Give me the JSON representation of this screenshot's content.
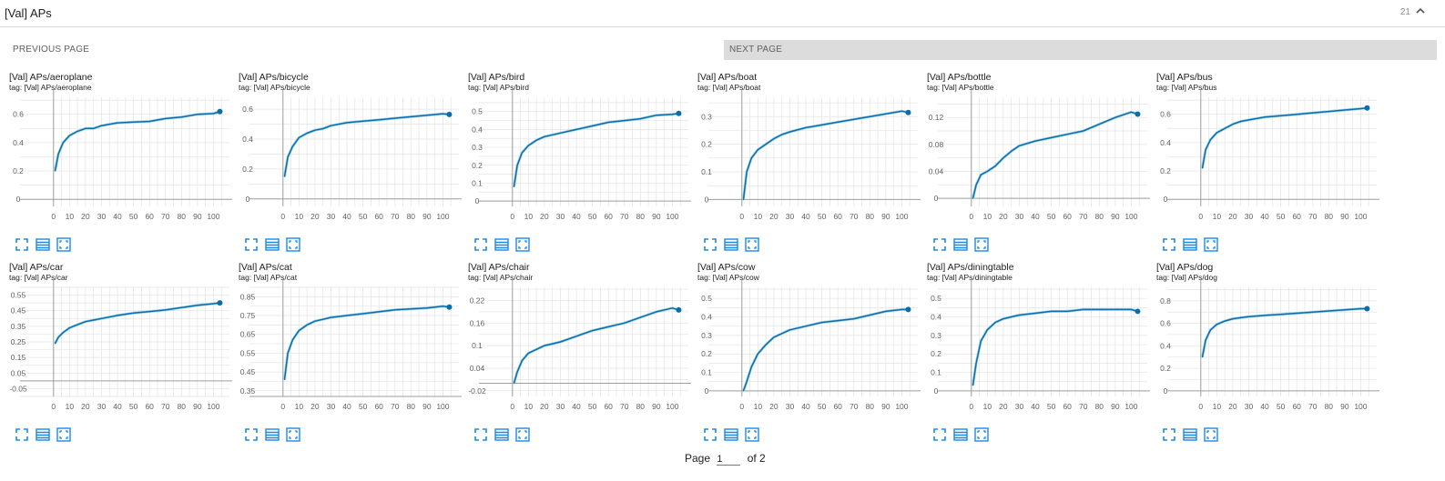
{
  "header": {
    "title": "[Val] APs",
    "count": "21"
  },
  "pager": {
    "prev_label": "PREVIOUS PAGE",
    "next_label": "NEXT PAGE",
    "page_label": "Page",
    "page_value": "1",
    "of_label": "of 2"
  },
  "colors": {
    "line": "#0b6ea8",
    "raw": "#a8d6ec",
    "grid": "#e3e3e3",
    "axis": "#9e9e9e",
    "icon": "#1e88e5"
  },
  "chart_data": [
    {
      "type": "line",
      "title": "[Val] APs/aeroplane",
      "tag": "tag: [Val] APs/aeroplane",
      "yticks": [
        0,
        0.2,
        0.4,
        0.6
      ],
      "ylim": [
        -0.05,
        0.72
      ],
      "xticks": [
        0,
        10,
        20,
        30,
        40,
        50,
        60,
        70,
        80,
        90,
        100
      ],
      "xlim": [
        -5,
        110
      ],
      "series": [
        {
          "x": [
            1,
            3,
            6,
            10,
            15,
            20,
            25,
            30,
            40,
            50,
            60,
            70,
            80,
            90,
            100,
            104
          ],
          "y": [
            0.2,
            0.32,
            0.4,
            0.45,
            0.48,
            0.5,
            0.5,
            0.52,
            0.54,
            0.545,
            0.55,
            0.57,
            0.58,
            0.6,
            0.605,
            0.62
          ]
        }
      ]
    },
    {
      "type": "line",
      "title": "[Val] APs/bicycle",
      "tag": "tag: [Val] APs/bicycle",
      "yticks": [
        0,
        0.2,
        0.4,
        0.6
      ],
      "ylim": [
        -0.05,
        0.68
      ],
      "xticks": [
        0,
        10,
        20,
        30,
        40,
        50,
        60,
        70,
        80,
        90,
        100
      ],
      "xlim": [
        -5,
        110
      ],
      "series": [
        {
          "x": [
            1,
            3,
            6,
            10,
            15,
            20,
            25,
            30,
            40,
            50,
            60,
            70,
            80,
            90,
            100,
            104
          ],
          "y": [
            0.15,
            0.28,
            0.35,
            0.41,
            0.44,
            0.46,
            0.47,
            0.49,
            0.51,
            0.52,
            0.53,
            0.54,
            0.55,
            0.56,
            0.57,
            0.565
          ]
        }
      ]
    },
    {
      "type": "line",
      "title": "[Val] APs/bird",
      "tag": "tag: [Val] APs/bird",
      "yticks": [
        0,
        0.1,
        0.2,
        0.3,
        0.4,
        0.5
      ],
      "ylim": [
        -0.03,
        0.58
      ],
      "xticks": [
        0,
        10,
        20,
        30,
        40,
        50,
        60,
        70,
        80,
        90,
        100
      ],
      "xlim": [
        -5,
        110
      ],
      "series": [
        {
          "x": [
            1,
            3,
            6,
            10,
            15,
            20,
            25,
            30,
            40,
            50,
            60,
            70,
            80,
            90,
            100,
            104
          ],
          "y": [
            0.08,
            0.2,
            0.27,
            0.31,
            0.34,
            0.36,
            0.37,
            0.38,
            0.4,
            0.42,
            0.44,
            0.45,
            0.46,
            0.48,
            0.485,
            0.49
          ]
        }
      ]
    },
    {
      "type": "line",
      "title": "[Val] APs/boat",
      "tag": "tag: [Val] APs/boat",
      "yticks": [
        0,
        0.1,
        0.2,
        0.3
      ],
      "ylim": [
        -0.025,
        0.37
      ],
      "xticks": [
        0,
        10,
        20,
        30,
        40,
        50,
        60,
        70,
        80,
        90,
        100
      ],
      "xlim": [
        -5,
        110
      ],
      "series": [
        {
          "x": [
            1,
            3,
            6,
            10,
            15,
            20,
            25,
            30,
            40,
            50,
            60,
            70,
            80,
            90,
            100,
            104
          ],
          "y": [
            0.0,
            0.1,
            0.15,
            0.18,
            0.2,
            0.22,
            0.235,
            0.245,
            0.26,
            0.27,
            0.28,
            0.29,
            0.3,
            0.31,
            0.32,
            0.315
          ]
        }
      ]
    },
    {
      "type": "line",
      "title": "[Val] APs/bottle",
      "tag": "tag: [Val] APs/bottle",
      "yticks": [
        0,
        0.04,
        0.08,
        0.12
      ],
      "ylim": [
        -0.012,
        0.15
      ],
      "xticks": [
        0,
        10,
        20,
        30,
        40,
        50,
        60,
        70,
        80,
        90,
        100
      ],
      "xlim": [
        -5,
        110
      ],
      "series": [
        {
          "x": [
            1,
            3,
            6,
            10,
            15,
            20,
            25,
            30,
            40,
            50,
            60,
            70,
            80,
            90,
            100,
            104
          ],
          "y": [
            0.0,
            0.02,
            0.035,
            0.04,
            0.048,
            0.06,
            0.07,
            0.078,
            0.085,
            0.09,
            0.095,
            0.1,
            0.11,
            0.12,
            0.128,
            0.125
          ]
        }
      ]
    },
    {
      "type": "line",
      "title": "[Val] APs/bus",
      "tag": "tag: [Val] APs/bus",
      "yticks": [
        0,
        0.2,
        0.4,
        0.6
      ],
      "ylim": [
        -0.05,
        0.72
      ],
      "xticks": [
        0,
        10,
        20,
        30,
        40,
        50,
        60,
        70,
        80,
        90,
        100
      ],
      "xlim": [
        -5,
        110
      ],
      "series": [
        {
          "x": [
            1,
            3,
            6,
            10,
            15,
            20,
            25,
            30,
            40,
            50,
            60,
            70,
            80,
            90,
            100,
            104
          ],
          "y": [
            0.22,
            0.35,
            0.42,
            0.47,
            0.5,
            0.53,
            0.55,
            0.56,
            0.58,
            0.59,
            0.6,
            0.61,
            0.62,
            0.63,
            0.64,
            0.645
          ]
        }
      ]
    },
    {
      "type": "line",
      "title": "[Val] APs/car",
      "tag": "tag: [Val] APs/car",
      "yticks": [
        -0.05,
        0.05,
        0.15,
        0.25,
        0.35,
        0.45,
        0.55
      ],
      "ylim": [
        -0.1,
        0.6
      ],
      "xticks": [
        0,
        10,
        20,
        30,
        40,
        50,
        60,
        70,
        80,
        90,
        100
      ],
      "xlim": [
        -5,
        110
      ],
      "series": [
        {
          "x": [
            1,
            3,
            6,
            10,
            15,
            20,
            25,
            30,
            40,
            50,
            60,
            70,
            80,
            90,
            100,
            104
          ],
          "y": [
            0.24,
            0.28,
            0.31,
            0.34,
            0.36,
            0.38,
            0.39,
            0.4,
            0.42,
            0.435,
            0.445,
            0.455,
            0.47,
            0.485,
            0.495,
            0.5
          ]
        }
      ]
    },
    {
      "type": "line",
      "title": "[Val] APs/cat",
      "tag": "tag: [Val] APs/cat",
      "yticks": [
        0.35,
        0.45,
        0.55,
        0.65,
        0.75,
        0.85
      ],
      "ylim": [
        0.32,
        0.9
      ],
      "xticks": [
        0,
        10,
        20,
        30,
        40,
        50,
        60,
        70,
        80,
        90,
        100
      ],
      "xlim": [
        -5,
        110
      ],
      "series": [
        {
          "x": [
            1,
            3,
            6,
            10,
            15,
            20,
            25,
            30,
            40,
            50,
            60,
            70,
            80,
            90,
            100,
            104
          ],
          "y": [
            0.41,
            0.55,
            0.62,
            0.67,
            0.7,
            0.72,
            0.73,
            0.74,
            0.75,
            0.76,
            0.77,
            0.78,
            0.785,
            0.79,
            0.8,
            0.795
          ]
        }
      ]
    },
    {
      "type": "line",
      "title": "[Val] APs/chair",
      "tag": "tag: [Val] APs/chair",
      "yticks": [
        -0.02,
        0.04,
        0.1,
        0.16,
        0.22
      ],
      "ylim": [
        -0.035,
        0.255
      ],
      "xticks": [
        0,
        10,
        20,
        30,
        40,
        50,
        60,
        70,
        80,
        90,
        100
      ],
      "xlim": [
        -5,
        110
      ],
      "series": [
        {
          "x": [
            1,
            3,
            6,
            10,
            15,
            20,
            25,
            30,
            40,
            50,
            60,
            70,
            80,
            90,
            100,
            104
          ],
          "y": [
            0.0,
            0.03,
            0.06,
            0.08,
            0.09,
            0.1,
            0.105,
            0.11,
            0.125,
            0.14,
            0.15,
            0.16,
            0.175,
            0.19,
            0.2,
            0.195
          ]
        }
      ]
    },
    {
      "type": "line",
      "title": "[Val] APs/cow",
      "tag": "tag: [Val] APs/cow",
      "yticks": [
        0,
        0.1,
        0.2,
        0.3,
        0.4,
        0.5
      ],
      "ylim": [
        -0.03,
        0.56
      ],
      "xticks": [
        0,
        10,
        20,
        30,
        40,
        50,
        60,
        70,
        80,
        90,
        100
      ],
      "xlim": [
        -5,
        110
      ],
      "series": [
        {
          "x": [
            1,
            3,
            6,
            10,
            15,
            20,
            25,
            30,
            40,
            50,
            60,
            70,
            80,
            90,
            100,
            104
          ],
          "y": [
            0.0,
            0.05,
            0.13,
            0.2,
            0.25,
            0.29,
            0.31,
            0.33,
            0.35,
            0.37,
            0.38,
            0.39,
            0.41,
            0.43,
            0.44,
            0.44
          ]
        }
      ]
    },
    {
      "type": "line",
      "title": "[Val] APs/diningtable",
      "tag": "tag: [Val] APs/diningtable",
      "yticks": [
        0,
        0.1,
        0.2,
        0.3,
        0.4,
        0.5
      ],
      "ylim": [
        -0.03,
        0.56
      ],
      "xticks": [
        0,
        10,
        20,
        30,
        40,
        50,
        60,
        70,
        80,
        90,
        100
      ],
      "xlim": [
        -5,
        110
      ],
      "series": [
        {
          "x": [
            1,
            3,
            6,
            10,
            15,
            20,
            25,
            30,
            40,
            50,
            60,
            70,
            80,
            90,
            100,
            104
          ],
          "y": [
            0.03,
            0.15,
            0.27,
            0.33,
            0.37,
            0.39,
            0.4,
            0.41,
            0.42,
            0.43,
            0.43,
            0.44,
            0.44,
            0.44,
            0.44,
            0.43
          ]
        }
      ]
    },
    {
      "type": "line",
      "title": "[Val] APs/dog",
      "tag": "tag: [Val] APs/dog",
      "yticks": [
        0,
        0.2,
        0.4,
        0.6,
        0.8
      ],
      "ylim": [
        -0.05,
        0.92
      ],
      "xticks": [
        0,
        10,
        20,
        30,
        40,
        50,
        60,
        70,
        80,
        90,
        100
      ],
      "xlim": [
        -5,
        110
      ],
      "series": [
        {
          "x": [
            1,
            3,
            6,
            10,
            15,
            20,
            25,
            30,
            40,
            50,
            60,
            70,
            80,
            90,
            100,
            104
          ],
          "y": [
            0.3,
            0.45,
            0.54,
            0.59,
            0.62,
            0.64,
            0.65,
            0.66,
            0.67,
            0.68,
            0.69,
            0.7,
            0.71,
            0.72,
            0.73,
            0.73
          ]
        }
      ]
    }
  ]
}
